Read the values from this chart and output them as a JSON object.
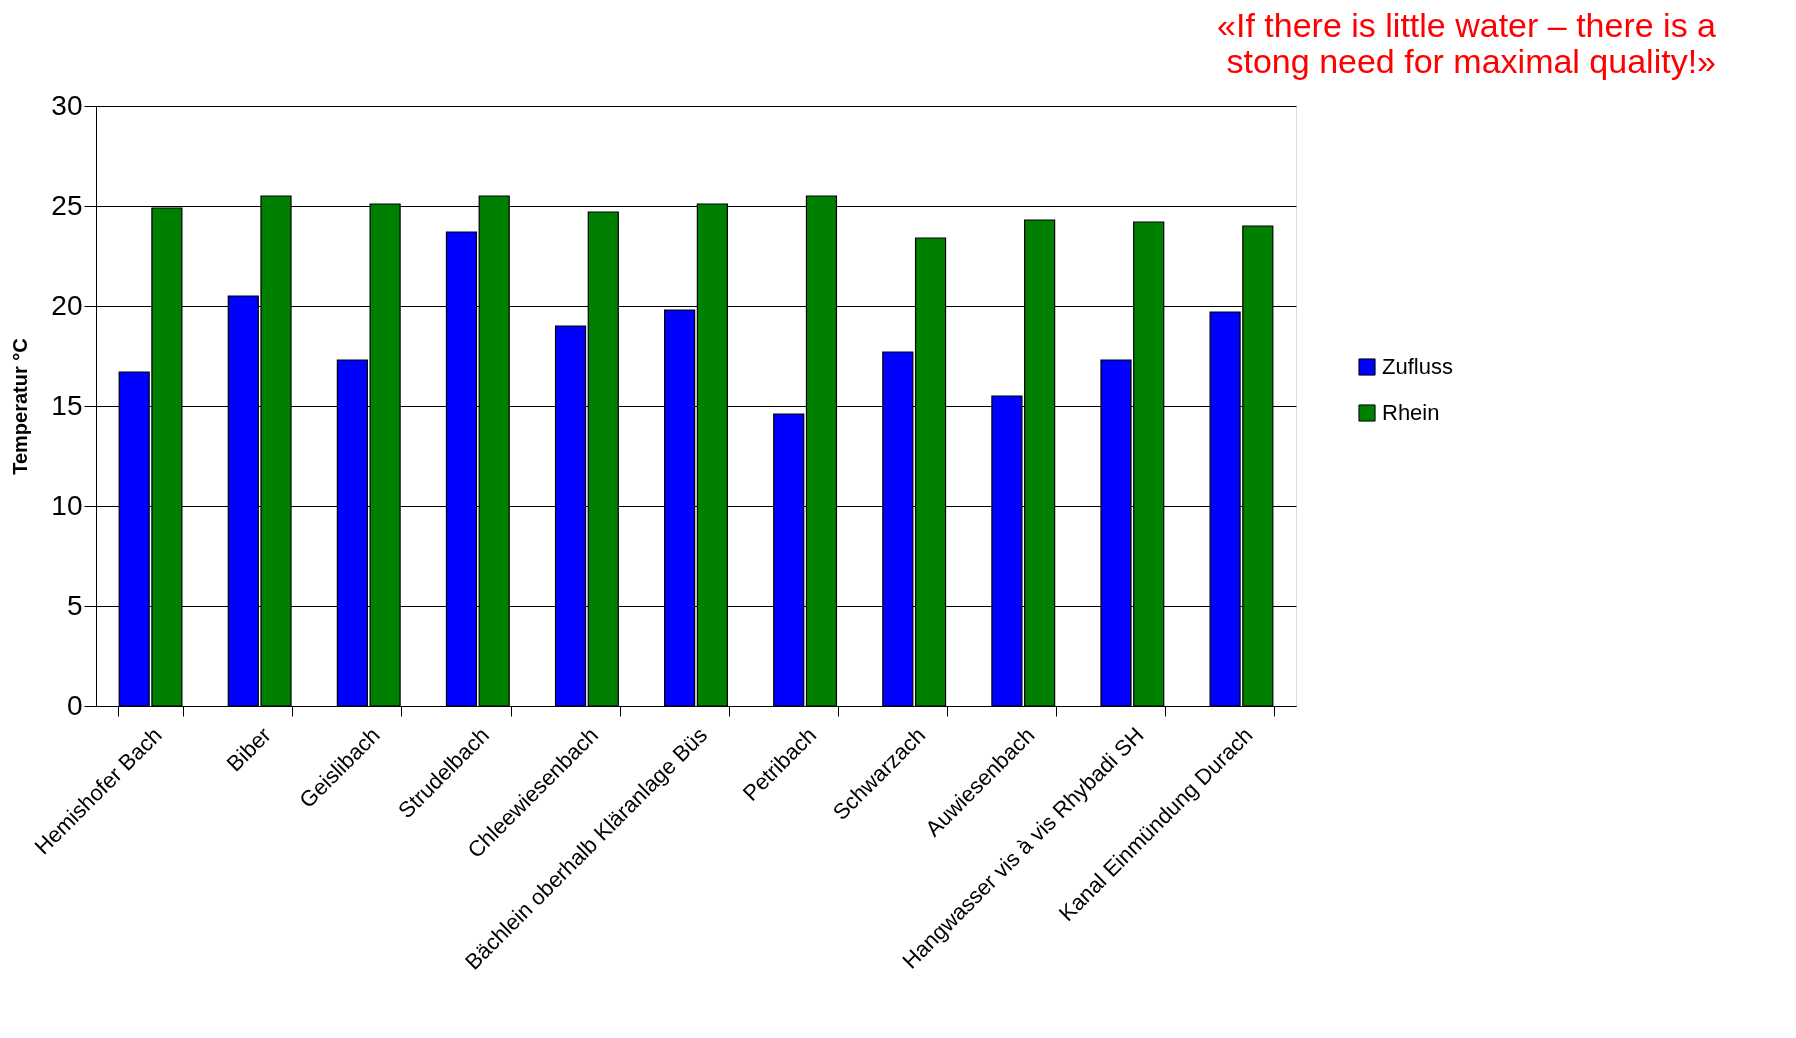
{
  "chart_data": {
    "type": "bar",
    "categories": [
      "Hemishofer Bach",
      "Biber",
      "Geislibach",
      "Strudelbach",
      "Chleewiesenbach",
      "Bächlein oberhalb Kläranlage Büs",
      "Petribach",
      "Schwarzach",
      "Auwiesenbach",
      "Hangwasser vis à vis Rhybadi SH",
      "Kanal Einmündung Durach"
    ],
    "series": [
      {
        "name": "Zufluss",
        "color": "#0000ff",
        "values": [
          16.7,
          20.5,
          17.3,
          23.7,
          19.0,
          19.8,
          14.6,
          17.7,
          15.5,
          17.3,
          19.7
        ]
      },
      {
        "name": "Rhein",
        "color": "#008000",
        "values": [
          24.9,
          25.5,
          25.1,
          25.5,
          24.7,
          25.1,
          25.5,
          23.4,
          24.3,
          24.2,
          24.0
        ]
      }
    ],
    "ylabel": "Temperatur °C",
    "ylim": [
      0,
      30
    ],
    "yticks": [
      0,
      5,
      10,
      15,
      20,
      25,
      30
    ],
    "grid": "y",
    "legend": "right",
    "annotations": [
      "«If there is little water – there is a",
      "stong need for maximal quality!»"
    ]
  }
}
